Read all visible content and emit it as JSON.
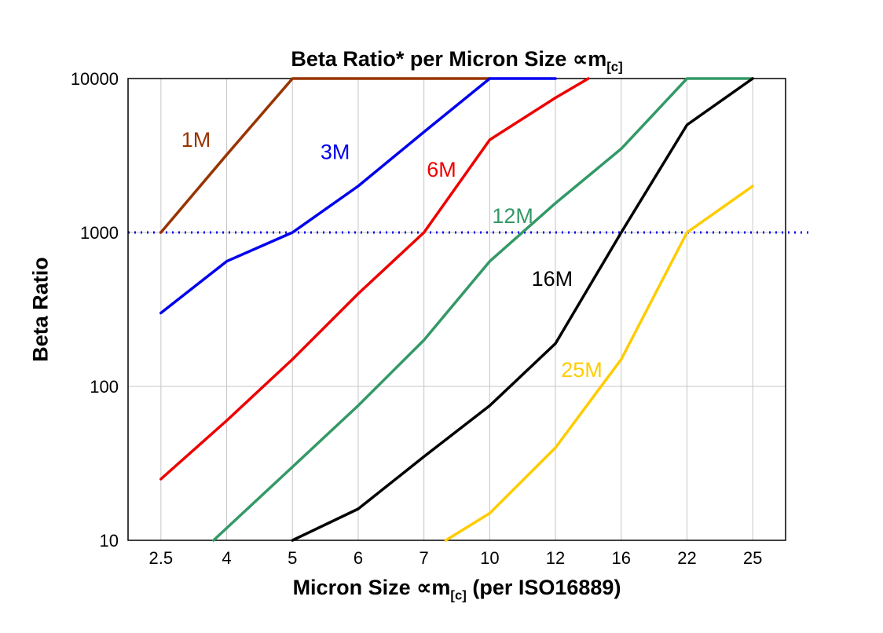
{
  "chart_data": {
    "type": "line",
    "title": {
      "main": "Beta Ratio* per Micron Size ",
      "symbol": "∝m",
      "subscript": "[c]"
    },
    "xlabel": {
      "main": "Micron Size ",
      "symbol": "∝m",
      "subscript": "[c]",
      "suffix": " (per ISO16889)"
    },
    "ylabel": "Beta Ratio",
    "x_categories": [
      2.5,
      4,
      5,
      6,
      7,
      10,
      12,
      16,
      22,
      25
    ],
    "x_tick_labels": [
      "2.5",
      "4",
      "5",
      "6",
      "7",
      "10",
      "12",
      "16",
      "22",
      "25"
    ],
    "y_scale": "log",
    "y_ticks": [
      10,
      100,
      1000,
      10000
    ],
    "y_tick_labels": [
      "10",
      "100",
      "1000",
      "10000"
    ],
    "ylim": [
      10,
      10000
    ],
    "grid": true,
    "grid_color": "#c6c6c6",
    "axis_color": "#000000",
    "reference_line": {
      "y": 1000,
      "color": "#0000ee",
      "style": "dotted"
    },
    "series": [
      {
        "name": "1M",
        "color": "#993300",
        "points": [
          [
            2.5,
            1000
          ],
          [
            4,
            3200
          ],
          [
            5,
            10000
          ],
          [
            10,
            10000
          ]
        ]
      },
      {
        "name": "3M",
        "color": "#0000ee",
        "points": [
          [
            2.5,
            300
          ],
          [
            4,
            650
          ],
          [
            5,
            1000
          ],
          [
            6,
            2000
          ],
          [
            7,
            4500
          ],
          [
            10,
            10000
          ],
          [
            12,
            10000
          ]
        ]
      },
      {
        "name": "6M",
        "color": "#ee0000",
        "points": [
          [
            2.5,
            25
          ],
          [
            4,
            60
          ],
          [
            5,
            150
          ],
          [
            6,
            400
          ],
          [
            7,
            1000
          ],
          [
            10,
            4000
          ],
          [
            12,
            7500
          ],
          [
            14,
            10000
          ]
        ]
      },
      {
        "name": "12M",
        "color": "#339966",
        "points": [
          [
            3.7,
            10
          ],
          [
            5,
            30
          ],
          [
            6,
            75
          ],
          [
            7,
            200
          ],
          [
            10,
            650
          ],
          [
            12,
            1550
          ],
          [
            16,
            3500
          ],
          [
            22,
            10000
          ],
          [
            25,
            10000
          ]
        ]
      },
      {
        "name": "16M",
        "color": "#000000",
        "points": [
          [
            5,
            10
          ],
          [
            6,
            16
          ],
          [
            7,
            35
          ],
          [
            10,
            75
          ],
          [
            12,
            190
          ],
          [
            16,
            1000
          ],
          [
            22,
            5000
          ],
          [
            25,
            10000
          ]
        ]
      },
      {
        "name": "25M",
        "color": "#ffcc00",
        "points": [
          [
            8,
            10
          ],
          [
            10,
            15
          ],
          [
            12,
            40
          ],
          [
            16,
            150
          ],
          [
            22,
            1000
          ],
          [
            25,
            2000
          ]
        ]
      }
    ],
    "annotations": [
      {
        "text": "1M",
        "x": 3.3,
        "y": 3600,
        "color": "#993300"
      },
      {
        "text": "3M",
        "x": 5.65,
        "y": 3000,
        "color": "#0000ee"
      },
      {
        "text": "6M",
        "x": 7.8,
        "y": 2300,
        "color": "#ee0000"
      },
      {
        "text": "12M",
        "x": 10.7,
        "y": 1150,
        "color": "#339966"
      },
      {
        "text": "16M",
        "x": 11.9,
        "y": 450,
        "color": "#000000"
      },
      {
        "text": "25M",
        "x": 13.6,
        "y": 115,
        "color": "#ffcc00"
      }
    ]
  }
}
